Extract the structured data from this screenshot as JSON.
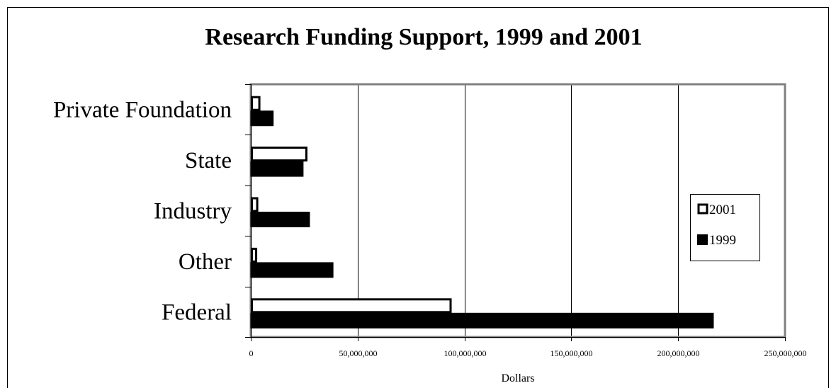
{
  "chart_data": {
    "type": "bar",
    "orientation": "horizontal",
    "title": "Research Funding Support, 1999 and 2001",
    "xlabel": "Dollars",
    "ylabel": "",
    "xlim": [
      0,
      250000000
    ],
    "x_ticks": [
      0,
      50000000,
      100000000,
      150000000,
      200000000,
      250000000
    ],
    "x_tick_labels": [
      "0",
      "50,000,000",
      "100,000,000",
      "150,000,000",
      "200,000,000",
      "250,000,000"
    ],
    "categories": [
      "Private Foundation",
      "State",
      "Industry",
      "Other",
      "Federal"
    ],
    "series": [
      {
        "name": "2001",
        "values": [
          4500000,
          26500000,
          3500000,
          3000000,
          94000000
        ],
        "fill": "#ffffff",
        "stroke": "#000000"
      },
      {
        "name": "1999",
        "values": [
          10500000,
          24500000,
          27500000,
          38500000,
          216500000
        ],
        "fill": "#000000",
        "stroke": "#000000"
      }
    ],
    "grid": "vertical",
    "legend_position": "right"
  }
}
